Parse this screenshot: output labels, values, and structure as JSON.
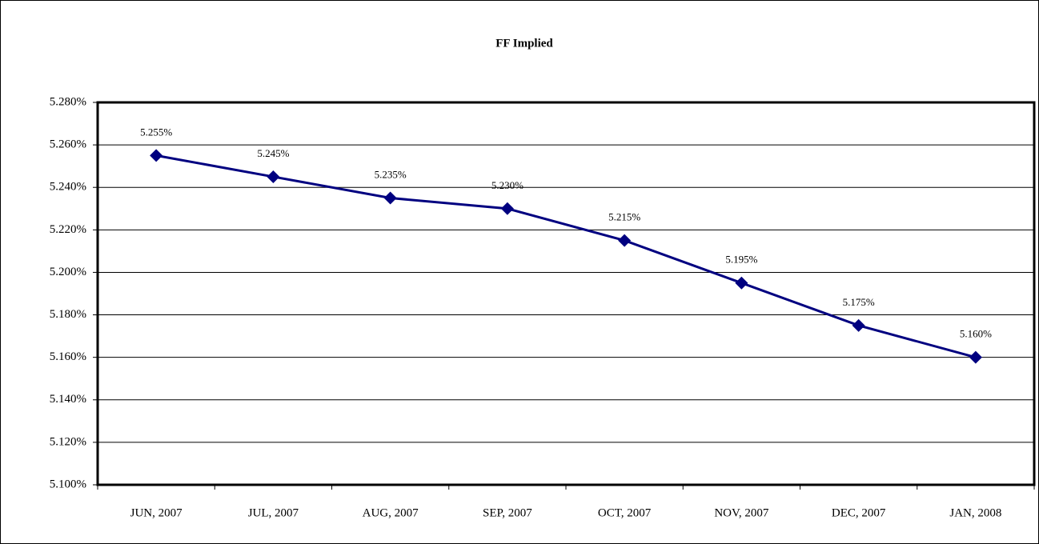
{
  "chart_data": {
    "type": "line",
    "title": "FF Implied",
    "categories": [
      "JUN, 2007",
      "JUL, 2007",
      "AUG, 2007",
      "SEP, 2007",
      "OCT, 2007",
      "NOV, 2007",
      "DEC, 2007",
      "JAN, 2008"
    ],
    "series": [
      {
        "name": "FF Implied",
        "color": "#000080",
        "values": [
          5.255,
          5.245,
          5.235,
          5.23,
          5.215,
          5.195,
          5.175,
          5.16
        ],
        "value_labels": [
          "5.255%",
          "5.245%",
          "5.235%",
          "5.230%",
          "5.215%",
          "5.195%",
          "5.175%",
          "5.160%"
        ]
      }
    ],
    "ylim": [
      5.1,
      5.28
    ],
    "yticks": [
      {
        "value": 5.1,
        "label": "5.100%"
      },
      {
        "value": 5.12,
        "label": "5.120%"
      },
      {
        "value": 5.14,
        "label": "5.140%"
      },
      {
        "value": 5.16,
        "label": "5.160%"
      },
      {
        "value": 5.18,
        "label": "5.180%"
      },
      {
        "value": 5.2,
        "label": "5.200%"
      },
      {
        "value": 5.22,
        "label": "5.220%"
      },
      {
        "value": 5.24,
        "label": "5.240%"
      },
      {
        "value": 5.26,
        "label": "5.260%"
      },
      {
        "value": 5.28,
        "label": "5.280%"
      }
    ],
    "grid": true
  }
}
